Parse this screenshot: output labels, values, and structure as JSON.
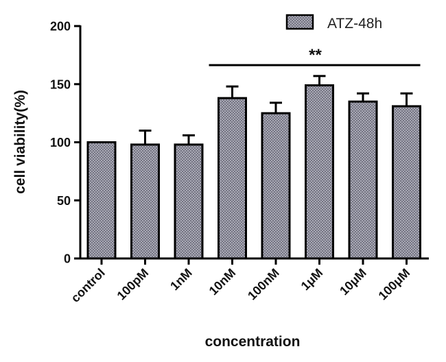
{
  "chart_data": {
    "type": "bar",
    "categories": [
      "control",
      "100pM",
      "1nM",
      "10nM",
      "100nM",
      "1μM",
      "10μM",
      "100μM"
    ],
    "series": [
      {
        "name": "ATZ-48h",
        "values": [
          100,
          98,
          98,
          138,
          125,
          149,
          135,
          131
        ],
        "error": [
          0,
          12,
          8,
          10,
          9,
          8,
          7,
          11
        ]
      }
    ],
    "xlabel": "concentration",
    "ylabel": "cell viability(%)",
    "ylim": [
      0,
      200
    ],
    "yticks": [
      0,
      50,
      100,
      150,
      200
    ],
    "grid": false,
    "legend_position": "top-right",
    "significance": {
      "label": "**",
      "from_category": "10nM",
      "to_category": "100μM"
    },
    "colors": {
      "bar_fill": "#a6a6b4",
      "bar_edge": "#000000",
      "axis": "#000000"
    }
  }
}
